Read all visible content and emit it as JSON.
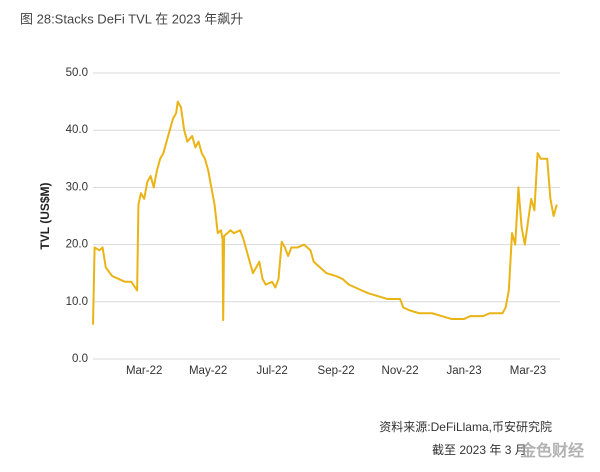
{
  "chart_data": {
    "type": "line",
    "title": "图 28:Stacks DeFi TVL 在 2023 年飙升",
    "y_label": "TVL (US$M)",
    "source": "资料来源:DeFiLlama,币安研究院",
    "date_note": "截至 2023 年 3 月",
    "watermark": "金色财经",
    "x": [
      0.4,
      0.45,
      0.6,
      0.7,
      0.8,
      1.0,
      1.2,
      1.4,
      1.6,
      1.78,
      1.82,
      1.9,
      2.0,
      2.1,
      2.2,
      2.3,
      2.4,
      2.5,
      2.6,
      2.7,
      2.8,
      2.9,
      3.0,
      3.05,
      3.15,
      3.25,
      3.35,
      3.5,
      3.6,
      3.7,
      3.8,
      3.9,
      4.0,
      4.1,
      4.2,
      4.3,
      4.4,
      4.45,
      4.47,
      4.5,
      4.6,
      4.7,
      4.8,
      5.0,
      5.1,
      5.3,
      5.4,
      5.5,
      5.6,
      5.7,
      5.8,
      6.0,
      6.1,
      6.2,
      6.3,
      6.4,
      6.5,
      6.6,
      6.8,
      7.0,
      7.2,
      7.3,
      7.5,
      7.7,
      8.0,
      8.2,
      8.4,
      8.6,
      8.8,
      9.0,
      9.3,
      9.6,
      9.9,
      10.0,
      10.1,
      10.3,
      10.6,
      11.0,
      11.3,
      11.6,
      12.0,
      12.2,
      12.4,
      12.6,
      12.8,
      13.0,
      13.2,
      13.3,
      13.4,
      13.5,
      13.6,
      13.7,
      13.8,
      13.9,
      14.0,
      14.1,
      14.2,
      14.3,
      14.4,
      14.6,
      14.7,
      14.8,
      14.9
    ],
    "series": [
      {
        "name": "TVL",
        "color": "#eab417",
        "values": [
          6,
          19.5,
          19,
          19.5,
          16,
          14.5,
          14,
          13.5,
          13.5,
          12,
          27,
          29,
          28,
          31,
          32,
          30,
          33,
          35,
          36,
          38,
          40,
          42,
          43,
          45,
          44,
          40,
          38,
          39,
          37,
          38,
          36,
          35,
          33,
          30,
          27,
          22,
          22.5,
          21,
          6.8,
          21.5,
          22,
          22.5,
          22,
          22.5,
          21,
          17,
          15,
          16,
          17,
          14,
          13,
          13.5,
          12.5,
          14,
          20.5,
          19.5,
          18,
          19.5,
          19.5,
          20,
          19,
          17,
          16,
          15,
          14.5,
          14,
          13,
          12.5,
          12,
          11.5,
          11,
          10.5,
          10.5,
          10.5,
          9,
          8.5,
          8,
          8,
          7.5,
          7,
          7,
          7.5,
          7.5,
          7.5,
          8,
          8,
          8,
          9,
          12,
          22,
          20,
          30,
          23,
          20,
          24,
          28,
          26,
          36,
          35,
          35,
          28,
          25,
          27
        ]
      }
    ],
    "xlim": [
      0.4,
      15.0
    ],
    "xticks": [
      {
        "value": 2,
        "label": "Mar-22"
      },
      {
        "value": 4,
        "label": "May-22"
      },
      {
        "value": 6,
        "label": "Jul-22"
      },
      {
        "value": 8,
        "label": "Sep-22"
      },
      {
        "value": 10,
        "label": "Nov-22"
      },
      {
        "value": 12,
        "label": "Jan-23"
      },
      {
        "value": 14,
        "label": "Mar-23"
      }
    ],
    "ylim": [
      0,
      50
    ],
    "yticks": [
      {
        "value": 0,
        "label": "0.0"
      },
      {
        "value": 10,
        "label": "10.0"
      },
      {
        "value": 20,
        "label": "20.0"
      },
      {
        "value": 30,
        "label": "30.0"
      },
      {
        "value": 40,
        "label": "40.0"
      },
      {
        "value": 50,
        "label": "50.0"
      }
    ],
    "grid": true
  }
}
